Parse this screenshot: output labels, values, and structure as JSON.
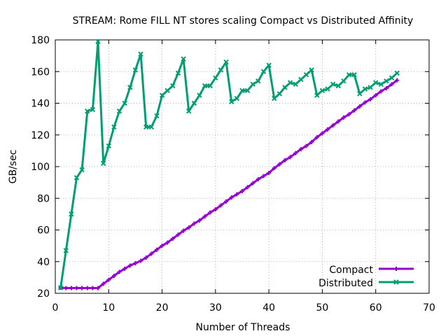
{
  "chart_data": {
    "type": "line",
    "title": "STREAM: Rome FILL NT stores scaling Compact vs Distributed Affinity",
    "xlabel": "Number of Threads",
    "ylabel": "GB/sec",
    "xlim": [
      0,
      70
    ],
    "ylim": [
      20,
      180
    ],
    "xticks": [
      0,
      10,
      20,
      30,
      40,
      50,
      60,
      70
    ],
    "yticks": [
      20,
      40,
      60,
      80,
      100,
      120,
      140,
      160,
      180
    ],
    "xtick_labels": [
      "0",
      "10",
      "20",
      "30",
      "40",
      "50",
      "60",
      "70"
    ],
    "ytick_labels": [
      "20",
      "40",
      "60",
      "80",
      "100",
      "120",
      "140",
      "160",
      "180"
    ],
    "grid": true,
    "legend_position": "bottom-right",
    "series": [
      {
        "name": "Compact",
        "color": "#9400d3",
        "marker": "plus",
        "x": [
          1,
          2,
          3,
          4,
          5,
          6,
          7,
          8,
          9,
          10,
          11,
          12,
          13,
          14,
          15,
          16,
          17,
          18,
          19,
          20,
          21,
          22,
          23,
          24,
          25,
          26,
          27,
          28,
          29,
          30,
          31,
          32,
          33,
          34,
          35,
          36,
          37,
          38,
          39,
          40,
          41,
          42,
          43,
          44,
          45,
          46,
          47,
          48,
          49,
          50,
          51,
          52,
          53,
          54,
          55,
          56,
          57,
          58,
          59,
          60,
          61,
          62,
          63,
          64
        ],
        "y": [
          23.5,
          23.3,
          23.3,
          23.3,
          23.3,
          23.3,
          23.3,
          23.3,
          26,
          28.5,
          31,
          33.5,
          35.5,
          37.5,
          39,
          40.5,
          42.5,
          45,
          47.5,
          50,
          52,
          54.5,
          57,
          59.5,
          61.5,
          64,
          66,
          68.5,
          71,
          73,
          75.5,
          78,
          80.5,
          82.5,
          84.5,
          87,
          89.5,
          92,
          94,
          96,
          99,
          101.5,
          104,
          106,
          108.5,
          111,
          113,
          115.5,
          118.5,
          121,
          123.5,
          126,
          128.5,
          131,
          133,
          135.5,
          138,
          140.5,
          142.5,
          145,
          147.5,
          149.5,
          152,
          154.5
        ]
      },
      {
        "name": "Distributed",
        "color": "#009e73",
        "marker": "x",
        "x": [
          1,
          2,
          3,
          4,
          5,
          6,
          7,
          8,
          9,
          10,
          11,
          12,
          13,
          14,
          15,
          16,
          17,
          18,
          19,
          20,
          21,
          22,
          23,
          24,
          25,
          26,
          27,
          28,
          29,
          30,
          31,
          32,
          33,
          34,
          35,
          36,
          37,
          38,
          39,
          40,
          41,
          42,
          43,
          44,
          45,
          46,
          47,
          48,
          49,
          50,
          51,
          52,
          53,
          54,
          55,
          56,
          57,
          58,
          59,
          60,
          61,
          62,
          63,
          64
        ],
        "y": [
          23.5,
          47,
          70,
          93,
          98,
          135,
          136,
          179,
          102,
          113,
          125,
          135,
          140,
          150,
          161,
          171,
          125,
          125,
          132,
          145,
          148,
          151,
          159,
          168,
          135,
          140,
          145,
          151,
          151,
          156,
          161,
          166,
          141,
          143,
          148,
          148,
          152,
          154,
          160,
          164,
          143,
          146,
          150,
          153,
          152,
          155,
          158,
          161,
          145,
          148,
          149,
          152,
          151,
          154,
          158,
          158,
          146,
          149,
          150,
          153,
          152,
          154,
          156,
          159
        ]
      }
    ]
  }
}
